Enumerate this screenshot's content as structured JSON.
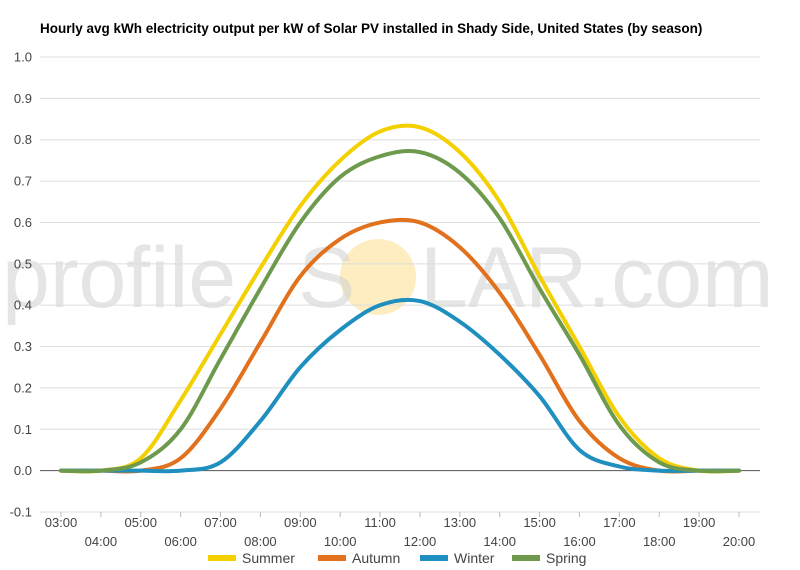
{
  "chart_data": {
    "type": "line",
    "title": "Hourly avg kWh electricity output per kW of Solar PV installed in Shady Side, United States (by season)",
    "xlabel": "",
    "ylabel": "",
    "ylim": [
      -0.1,
      1.0
    ],
    "yticks": [
      "-0.1",
      "0.0",
      "0.1",
      "0.2",
      "0.3",
      "0.4",
      "0.5",
      "0.6",
      "0.7",
      "0.8",
      "0.9",
      "1.0"
    ],
    "grid": true,
    "legend": "bottom",
    "categories": [
      "03:00",
      "04:00",
      "05:00",
      "06:00",
      "07:00",
      "08:00",
      "09:00",
      "10:00",
      "11:00",
      "12:00",
      "13:00",
      "14:00",
      "15:00",
      "16:00",
      "17:00",
      "18:00",
      "19:00",
      "20:00"
    ],
    "series": [
      {
        "name": "Summer",
        "color": "#f5d000",
        "values": [
          0.0,
          0.0,
          0.03,
          0.17,
          0.33,
          0.49,
          0.64,
          0.75,
          0.82,
          0.83,
          0.77,
          0.65,
          0.47,
          0.3,
          0.13,
          0.03,
          0.0,
          0.0
        ]
      },
      {
        "name": "Autumn",
        "color": "#e2711d",
        "values": [
          0.0,
          0.0,
          0.0,
          0.03,
          0.15,
          0.31,
          0.47,
          0.56,
          0.6,
          0.6,
          0.54,
          0.43,
          0.28,
          0.12,
          0.03,
          0.0,
          0.0,
          0.0
        ]
      },
      {
        "name": "Winter",
        "color": "#1f8fbf",
        "values": [
          0.0,
          0.0,
          0.0,
          0.0,
          0.02,
          0.12,
          0.25,
          0.34,
          0.4,
          0.41,
          0.36,
          0.28,
          0.18,
          0.05,
          0.01,
          0.0,
          0.0,
          0.0
        ]
      },
      {
        "name": "Spring",
        "color": "#6e9a4e",
        "values": [
          0.0,
          0.0,
          0.02,
          0.1,
          0.27,
          0.44,
          0.6,
          0.71,
          0.76,
          0.77,
          0.72,
          0.61,
          0.44,
          0.28,
          0.11,
          0.02,
          0.0,
          0.0
        ]
      }
    ]
  },
  "watermark": {
    "text_left": "profile",
    "text_mid": "S",
    "text_right": "LAR.com",
    "sun_color": "#fde9b0"
  }
}
